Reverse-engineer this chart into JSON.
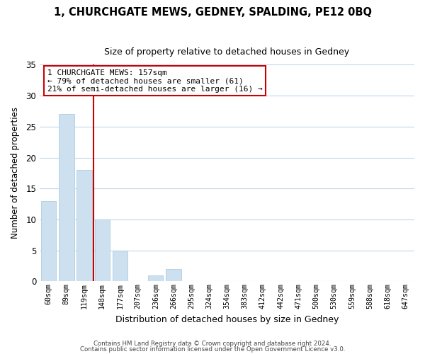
{
  "title": "1, CHURCHGATE MEWS, GEDNEY, SPALDING, PE12 0BQ",
  "subtitle": "Size of property relative to detached houses in Gedney",
  "xlabel": "Distribution of detached houses by size in Gedney",
  "ylabel": "Number of detached properties",
  "bar_labels": [
    "60sqm",
    "89sqm",
    "119sqm",
    "148sqm",
    "177sqm",
    "207sqm",
    "236sqm",
    "266sqm",
    "295sqm",
    "324sqm",
    "354sqm",
    "383sqm",
    "412sqm",
    "442sqm",
    "471sqm",
    "500sqm",
    "530sqm",
    "559sqm",
    "588sqm",
    "618sqm",
    "647sqm"
  ],
  "bar_values": [
    13,
    27,
    18,
    10,
    5,
    0,
    1,
    2,
    0,
    0,
    0,
    0,
    0,
    0,
    0,
    0,
    0,
    0,
    0,
    0,
    0
  ],
  "bar_color": "#cce0f0",
  "bar_edge_color": "#b0ccdd",
  "vline_x_index": 3,
  "vline_color": "#cc0000",
  "annotation_title": "1 CHURCHGATE MEWS: 157sqm",
  "annotation_line1": "← 79% of detached houses are smaller (61)",
  "annotation_line2": "21% of semi-detached houses are larger (16) →",
  "annotation_box_color": "#ffffff",
  "annotation_box_edge": "#cc0000",
  "ylim": [
    0,
    35
  ],
  "yticks": [
    0,
    5,
    10,
    15,
    20,
    25,
    30,
    35
  ],
  "footer1": "Contains HM Land Registry data © Crown copyright and database right 2024.",
  "footer2": "Contains public sector information licensed under the Open Government Licence v3.0.",
  "background_color": "#ffffff",
  "grid_color": "#c0d8ec"
}
